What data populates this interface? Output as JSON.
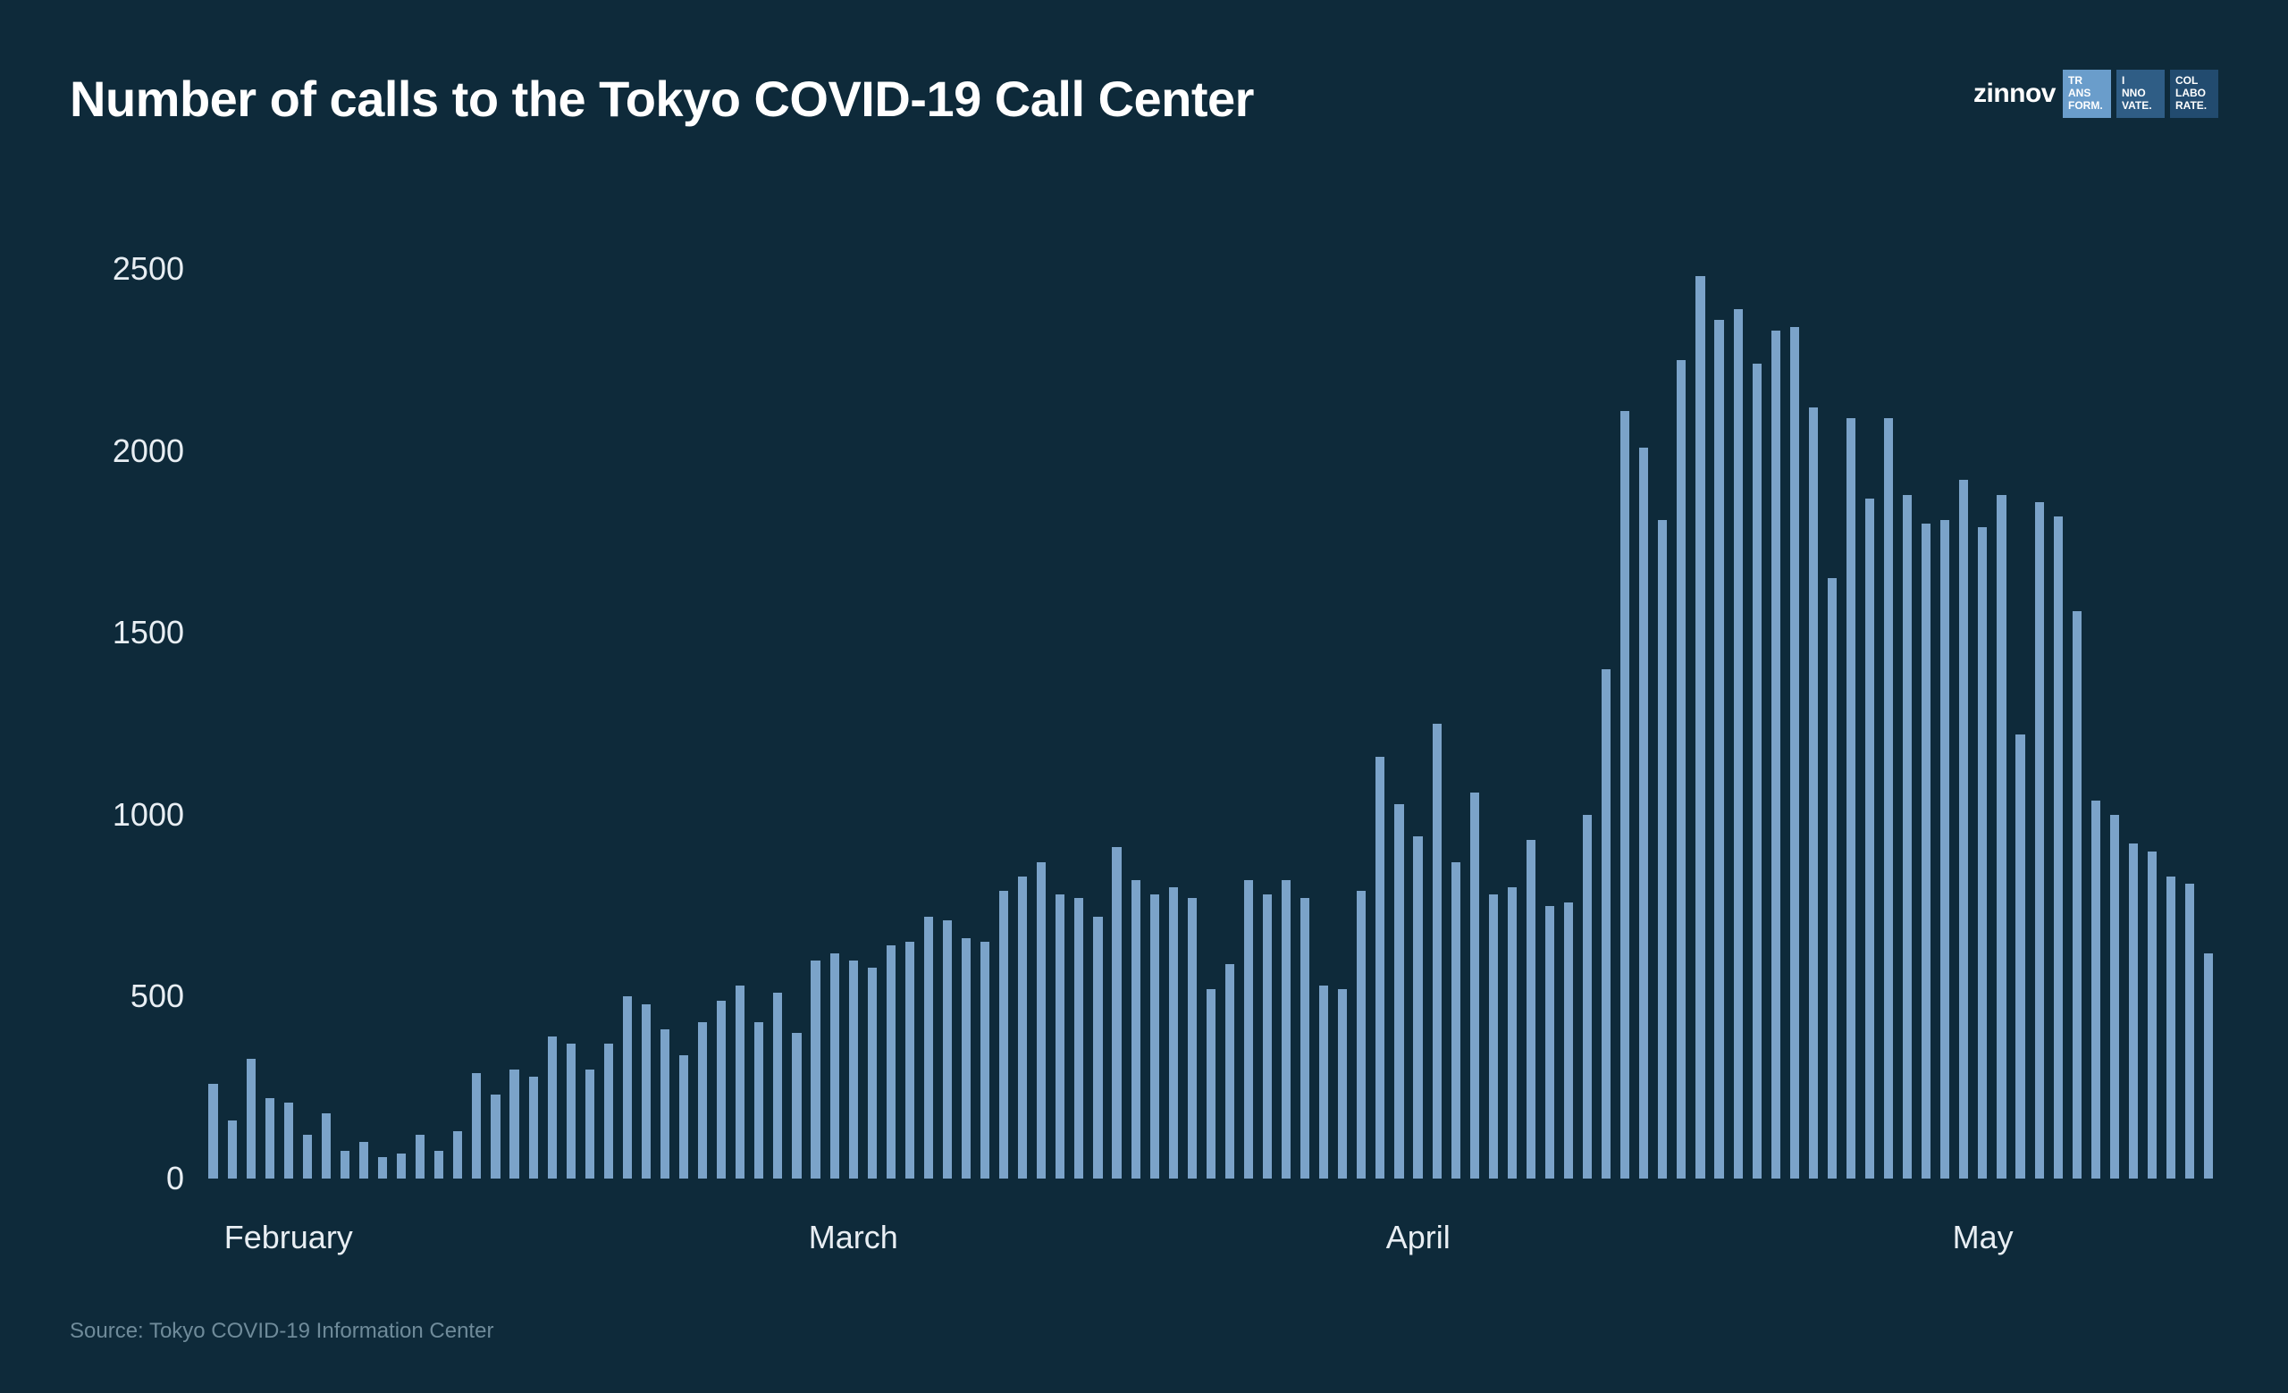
{
  "title": "Number of calls to the Tokyo COVID-19 Call Center",
  "title_fontsize": 56,
  "title_color": "#ffffff",
  "brand": {
    "name": "zinnov",
    "name_fontsize": 30,
    "name_color": "#ffffff",
    "badges": [
      {
        "lines": [
          "TR",
          "ANS",
          "FORM."
        ],
        "bg": "#6a9dcb"
      },
      {
        "lines": [
          "I",
          "NNO",
          "VATE."
        ],
        "bg": "#2f5d85"
      },
      {
        "lines": [
          "COL",
          "LABO",
          "RATE."
        ],
        "bg": "#224b6f"
      }
    ]
  },
  "chart": {
    "type": "bar",
    "background_color": "#0e2a3a",
    "bar_color": "#7ba3c9",
    "axis_label_color": "#e8eef3",
    "axis_label_fontsize": 36,
    "ylim": [
      0,
      2650
    ],
    "yticks": [
      0,
      500,
      1000,
      1500,
      2000,
      2500
    ],
    "bar_width_ratio": 0.48,
    "values": [
      260,
      160,
      330,
      220,
      210,
      120,
      180,
      75,
      100,
      60,
      70,
      120,
      75,
      130,
      290,
      230,
      300,
      280,
      390,
      370,
      300,
      370,
      500,
      480,
      410,
      340,
      430,
      490,
      530,
      430,
      510,
      400,
      600,
      620,
      600,
      580,
      640,
      650,
      720,
      710,
      660,
      650,
      790,
      830,
      870,
      780,
      770,
      720,
      910,
      820,
      780,
      800,
      770,
      520,
      590,
      820,
      780,
      820,
      770,
      530,
      520,
      790,
      1160,
      1030,
      940,
      1250,
      870,
      1060,
      780,
      800,
      930,
      750,
      760,
      1000,
      1400,
      2110,
      2010,
      1810,
      2250,
      2480,
      2360,
      2390,
      2240,
      2330,
      2340,
      2120,
      1650,
      2090,
      1870,
      2090,
      1880,
      1800,
      1810,
      1920,
      1790,
      1880,
      1220,
      1860,
      1820,
      1560,
      1040,
      1000,
      920,
      900,
      830,
      810,
      620
    ],
    "x_tick_labels": [
      "February",
      "March",
      "April",
      "May"
    ],
    "x_tick_positions": [
      4,
      34,
      64,
      94
    ]
  },
  "source": {
    "text": "Source: Tokyo COVID-19 Information Center",
    "color": "#6f8b9a",
    "fontsize": 24
  }
}
